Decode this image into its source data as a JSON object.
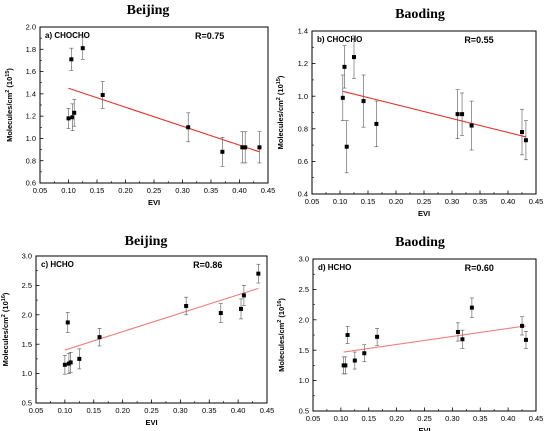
{
  "chart_data": [
    {
      "type": "scatter",
      "title": "Beijing",
      "panel_label": "a) CHOCHO",
      "annotation": "R=0.75",
      "xlabel": "EVI",
      "ylabel_main": "Molecules/cm",
      "ylabel_sup1": "2",
      "ylabel_mid": " (10",
      "ylabel_sup2": "15",
      "ylabel_end": ")",
      "xlim": [
        0.05,
        0.45
      ],
      "ylim": [
        0.6,
        2.0
      ],
      "xticks": [
        "0.05",
        "0.10",
        "0.15",
        "0.20",
        "0.25",
        "0.30",
        "0.35",
        "0.40",
        "0.45"
      ],
      "yticks": [
        "0.6",
        "0.8",
        "1.0",
        "1.2",
        "1.4",
        "1.6",
        "1.8",
        "2.0"
      ],
      "x": [
        0.1,
        0.105,
        0.107,
        0.11,
        0.125,
        0.16,
        0.31,
        0.37,
        0.405,
        0.41,
        0.435
      ],
      "y": [
        1.18,
        1.71,
        1.19,
        1.23,
        1.81,
        1.39,
        1.1,
        0.88,
        0.92,
        0.92,
        0.92
      ],
      "yerr": [
        0.09,
        0.1,
        0.12,
        0.12,
        0.1,
        0.12,
        0.13,
        0.13,
        0.14,
        0.14,
        0.14
      ],
      "fit_x": [
        0.1,
        0.435
      ],
      "fit_y": [
        1.45,
        0.88
      ],
      "fit_color": "#e8312f",
      "marker_color": "#000000"
    },
    {
      "type": "scatter",
      "title": "Baoding",
      "panel_label": "b) CHOCHO",
      "annotation": "R=0.55",
      "xlabel": "EVI",
      "ylabel_main": "Molecules/cm",
      "ylabel_sup1": "2",
      "ylabel_mid": " (10",
      "ylabel_sup2": "15",
      "ylabel_end": ")",
      "xlim": [
        0.05,
        0.45
      ],
      "ylim": [
        0.4,
        1.4
      ],
      "xticks": [
        "0.05",
        "0.10",
        "0.15",
        "0.20",
        "0.25",
        "0.30",
        "0.35",
        "0.40",
        "0.45"
      ],
      "yticks": [
        "0.4",
        "0.6",
        "0.8",
        "1.0",
        "1.2",
        "1.4"
      ],
      "x": [
        0.105,
        0.108,
        0.112,
        0.125,
        0.142,
        0.165,
        0.31,
        0.318,
        0.335,
        0.425,
        0.432
      ],
      "y": [
        0.99,
        1.18,
        0.69,
        1.24,
        0.97,
        0.83,
        0.89,
        0.89,
        0.82,
        0.78,
        0.73
      ],
      "yerr": [
        0.14,
        0.13,
        0.16,
        0.13,
        0.16,
        0.14,
        0.15,
        0.13,
        0.15,
        0.14,
        0.12
      ],
      "fit_x": [
        0.105,
        0.432
      ],
      "fit_y": [
        1.03,
        0.75
      ],
      "fit_color": "#e8312f",
      "marker_color": "#000000"
    },
    {
      "type": "scatter",
      "title": "Beijing",
      "panel_label": "c) HCHO",
      "annotation": "R=0.86",
      "xlabel": "EVI",
      "ylabel_main": "Molecules/cm",
      "ylabel_sup1": "2",
      "ylabel_mid": " (10",
      "ylabel_sup2": "16",
      "ylabel_end": ")",
      "xlim": [
        0.05,
        0.45
      ],
      "ylim": [
        0.5,
        3.0
      ],
      "xticks": [
        "0.05",
        "0.10",
        "0.15",
        "0.20",
        "0.25",
        "0.30",
        "0.35",
        "0.40",
        "0.45"
      ],
      "yticks": [
        "0.5",
        "1.0",
        "1.5",
        "2.0",
        "2.5",
        "3.0"
      ],
      "x": [
        0.1,
        0.105,
        0.107,
        0.11,
        0.125,
        0.16,
        0.31,
        0.37,
        0.405,
        0.41,
        0.435
      ],
      "y": [
        1.15,
        1.87,
        1.17,
        1.19,
        1.25,
        1.62,
        2.15,
        2.03,
        2.1,
        2.33,
        2.7
      ],
      "yerr": [
        0.16,
        0.17,
        0.17,
        0.17,
        0.17,
        0.15,
        0.15,
        0.16,
        0.17,
        0.17,
        0.16
      ],
      "fit_x": [
        0.1,
        0.435
      ],
      "fit_y": [
        1.4,
        2.45
      ],
      "fit_color": "#ef7f7f",
      "marker_color": "#000000"
    },
    {
      "type": "scatter",
      "title": "Baoding",
      "panel_label": "d) HCHO",
      "annotation": "R=0.60",
      "xlabel": "EVI",
      "ylabel_main": "Molecules/cm",
      "ylabel_sup1": "2",
      "ylabel_mid": " (10",
      "ylabel_sup2": "16",
      "ylabel_end": ")",
      "xlim": [
        0.05,
        0.45
      ],
      "ylim": [
        0.5,
        3.0
      ],
      "xticks": [
        "0.05",
        "0.10",
        "0.15",
        "0.20",
        "0.25",
        "0.30",
        "0.35",
        "0.40",
        "0.45"
      ],
      "yticks": [
        "0.5",
        "1.0",
        "1.5",
        "2.0",
        "2.5",
        "3.0"
      ],
      "x": [
        0.105,
        0.108,
        0.112,
        0.125,
        0.142,
        0.165,
        0.31,
        0.318,
        0.335,
        0.425,
        0.432
      ],
      "y": [
        1.25,
        1.25,
        1.75,
        1.33,
        1.45,
        1.72,
        1.8,
        1.68,
        2.2,
        1.9,
        1.67
      ],
      "yerr": [
        0.14,
        0.14,
        0.14,
        0.14,
        0.14,
        0.14,
        0.15,
        0.15,
        0.16,
        0.15,
        0.14
      ],
      "fit_x": [
        0.105,
        0.432
      ],
      "fit_y": [
        1.47,
        1.9
      ],
      "fit_color": "#ef7f7f",
      "marker_color": "#000000"
    }
  ]
}
